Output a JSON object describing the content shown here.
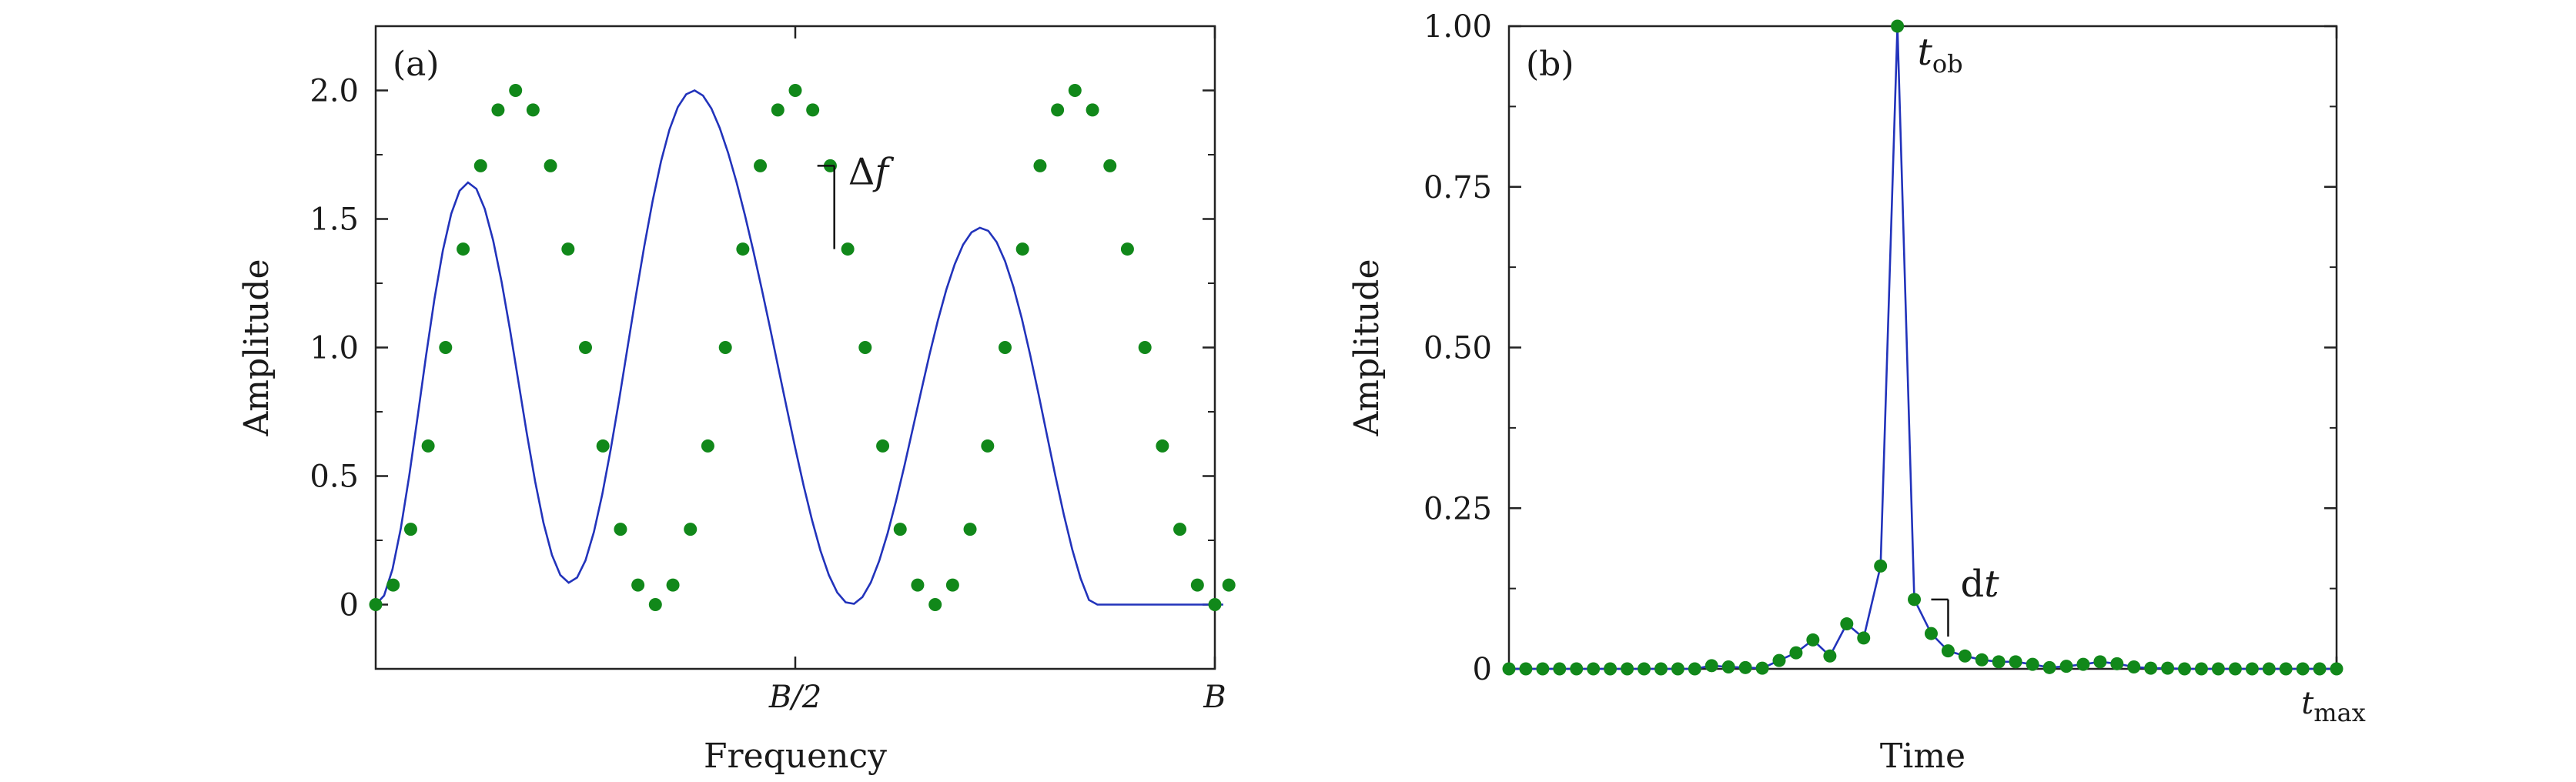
{
  "chart_data": [
    {
      "type": "line",
      "panel_label": "(a)",
      "xlabel": "Frequency",
      "ylabel": "Amplitude",
      "xlim": [
        0,
        1
      ],
      "ylim": [
        -0.25,
        2.25
      ],
      "x_ticks": [
        {
          "value": 0.5,
          "label": "B/2"
        },
        {
          "value": 1.0,
          "label": "B"
        }
      ],
      "y_ticks": [
        {
          "value": 0,
          "label": "0"
        },
        {
          "value": 0.5,
          "label": "0.5"
        },
        {
          "value": 1.0,
          "label": "1.0"
        },
        {
          "value": 1.5,
          "label": "1.5"
        },
        {
          "value": 2.0,
          "label": "2.0"
        }
      ],
      "y_minor_ticks": [
        0.25,
        0.75,
        1.25,
        1.75
      ],
      "grid": false,
      "line_color": "#2233bb",
      "marker_color": "#11881a",
      "series": [
        {
          "curve_x": [
            0.0,
            0.01,
            0.02,
            0.03,
            0.04,
            0.05,
            0.06,
            0.07,
            0.08,
            0.09,
            0.1,
            0.11,
            0.12,
            0.13,
            0.14,
            0.15,
            0.16,
            0.17,
            0.18,
            0.19,
            0.2,
            0.21,
            0.22,
            0.23,
            0.24,
            0.25,
            0.26,
            0.27,
            0.28,
            0.29,
            0.3,
            0.31,
            0.32,
            0.33,
            0.34,
            0.35,
            0.36,
            0.37,
            0.38,
            0.39,
            0.4,
            0.41,
            0.42,
            0.43,
            0.44,
            0.45,
            0.46,
            0.47,
            0.48,
            0.49,
            0.5,
            0.51,
            0.52,
            0.53,
            0.54,
            0.55,
            0.56,
            0.57,
            0.58,
            0.59,
            0.6,
            0.61,
            0.62,
            0.63,
            0.64,
            0.65,
            0.66,
            0.67,
            0.68,
            0.69,
            0.7,
            0.71,
            0.72,
            0.73,
            0.74,
            0.75,
            0.76,
            0.77,
            0.78,
            0.79,
            0.8,
            0.81,
            0.82,
            0.83,
            0.84,
            0.85,
            0.86,
            0.87,
            0.88,
            0.89,
            0.9,
            0.91,
            0.92,
            0.93,
            0.94,
            0.95,
            0.96,
            0.97,
            0.98,
            0.99,
            1.0,
            1.01
          ],
          "curve_y": [
            0.0,
            0.035,
            0.137,
            0.298,
            0.502,
            0.732,
            0.968,
            1.189,
            1.377,
            1.52,
            1.61,
            1.642,
            1.617,
            1.539,
            1.416,
            1.256,
            1.07,
            0.869,
            0.667,
            0.479,
            0.317,
            0.193,
            0.115,
            0.085,
            0.105,
            0.172,
            0.282,
            0.429,
            0.603,
            0.795,
            0.998,
            1.2,
            1.393,
            1.57,
            1.724,
            1.847,
            1.935,
            1.985,
            2.0,
            1.98,
            1.93,
            1.854,
            1.757,
            1.643,
            1.515,
            1.376,
            1.228,
            1.075,
            0.918,
            0.762,
            0.608,
            0.462,
            0.328,
            0.21,
            0.115,
            0.047,
            0.009,
            0.003,
            0.029,
            0.086,
            0.17,
            0.277,
            0.402,
            0.539,
            0.684,
            0.83,
            0.973,
            1.106,
            1.225,
            1.324,
            1.4,
            1.448,
            1.466,
            1.454,
            1.41,
            1.336,
            1.235,
            1.112,
            0.97,
            0.817,
            0.658,
            0.5,
            0.35,
            0.215,
            0.102,
            0.018,
            0.0,
            0.0,
            0.0,
            0.0,
            0.0,
            0.0,
            0.0,
            0.0,
            0.0,
            0.0,
            0.0,
            0.0,
            0.0,
            0.0,
            0.0,
            0.0
          ],
          "marker_x": [
            0.0,
            0.0208,
            0.0417,
            0.0625,
            0.0833,
            0.1042,
            0.125,
            0.1458,
            0.1667,
            0.1875,
            0.2083,
            0.2292,
            0.25,
            0.2708,
            0.2917,
            0.3125,
            0.3333,
            0.3542,
            0.375,
            0.3958,
            0.4167,
            0.4375,
            0.4583,
            0.4792,
            0.5,
            0.5208,
            0.5417,
            0.5625,
            0.5833,
            0.6042,
            0.625,
            0.6458,
            0.6667,
            0.6875,
            0.7083,
            0.7292,
            0.75,
            0.7708,
            0.7917,
            0.8125,
            0.8333,
            0.8542,
            0.875,
            0.8958,
            0.9167,
            0.9375,
            0.9583,
            0.9792,
            1.0,
            1.0167
          ],
          "marker_y": [
            0.0,
            0.076,
            0.293,
            0.617,
            1.0,
            1.383,
            1.707,
            1.924,
            2.0,
            1.924,
            1.707,
            1.383,
            1.0,
            0.617,
            0.293,
            0.076,
            0.0,
            0.076,
            0.293,
            0.617,
            1.0,
            1.383,
            1.707,
            1.924,
            2.0,
            1.924,
            1.707,
            1.383,
            1.0,
            0.617,
            0.293,
            0.076,
            0.0,
            0.076,
            0.293,
            0.617,
            1.0,
            1.383,
            1.707,
            1.924,
            2.0,
            1.924,
            1.707,
            1.383,
            1.0,
            0.617,
            0.293,
            0.076,
            0.0,
            0.076
          ]
        }
      ],
      "annotations": [
        {
          "label": "Δf",
          "x": 0.541,
          "y_from": 1.707,
          "y_to": 1.383
        }
      ]
    },
    {
      "type": "line",
      "panel_label": "(b)",
      "xlabel": "Time",
      "ylabel": "Amplitude",
      "xlim": [
        0,
        1
      ],
      "ylim": [
        0,
        1.0
      ],
      "x_ticks": [
        {
          "value": 1.0,
          "label": "t",
          "sub": "max"
        }
      ],
      "y_ticks": [
        {
          "value": 0,
          "label": "0"
        },
        {
          "value": 0.25,
          "label": "0.25"
        },
        {
          "value": 0.5,
          "label": "0.50"
        },
        {
          "value": 0.75,
          "label": "0.75"
        },
        {
          "value": 1.0,
          "label": "1.00"
        }
      ],
      "y_minor_ticks": [
        0.125,
        0.375,
        0.625,
        0.875
      ],
      "grid": false,
      "line_color": "#2233bb",
      "marker_color": "#11881a",
      "series": [
        {
          "x": [
            0.0,
            0.0204,
            0.0408,
            0.0612,
            0.0816,
            0.102,
            0.1224,
            0.1429,
            0.1633,
            0.1837,
            0.2041,
            0.2245,
            0.2449,
            0.2653,
            0.2857,
            0.3061,
            0.3265,
            0.3469,
            0.3673,
            0.3878,
            0.4082,
            0.4286,
            0.449,
            0.4694,
            0.4898,
            0.5102,
            0.5306,
            0.551,
            0.5714,
            0.5918,
            0.6122,
            0.6327,
            0.6531,
            0.6735,
            0.6939,
            0.7143,
            0.7347,
            0.7551,
            0.7755,
            0.7959,
            0.8163,
            0.8367,
            0.8571,
            0.8776,
            0.898,
            0.9184,
            0.9388,
            0.9592,
            0.9796,
            1.0
          ],
          "y": [
            0.0,
            0.0,
            0.0,
            0.0,
            0.0,
            0.0,
            0.0,
            0.0,
            0.0,
            0.0,
            0.0,
            0.0,
            0.005,
            0.003,
            0.002,
            0.001,
            0.013,
            0.025,
            0.045,
            0.02,
            0.07,
            0.048,
            0.16,
            1.0,
            0.108,
            0.055,
            0.028,
            0.02,
            0.014,
            0.011,
            0.011,
            0.007,
            0.002,
            0.004,
            0.007,
            0.011,
            0.008,
            0.003,
            0.001,
            0.001,
            0.0,
            0.0,
            0.0,
            0.0,
            0.0,
            0.0,
            0.0,
            0.0,
            0.0,
            0.0
          ]
        }
      ],
      "annotations": [
        {
          "label": "t",
          "sub": "ob",
          "x": 0.4694,
          "y": 1.0
        },
        {
          "label": "dt",
          "x": 0.5102,
          "y_from": 0.108,
          "y_to": 0.055
        }
      ]
    }
  ]
}
